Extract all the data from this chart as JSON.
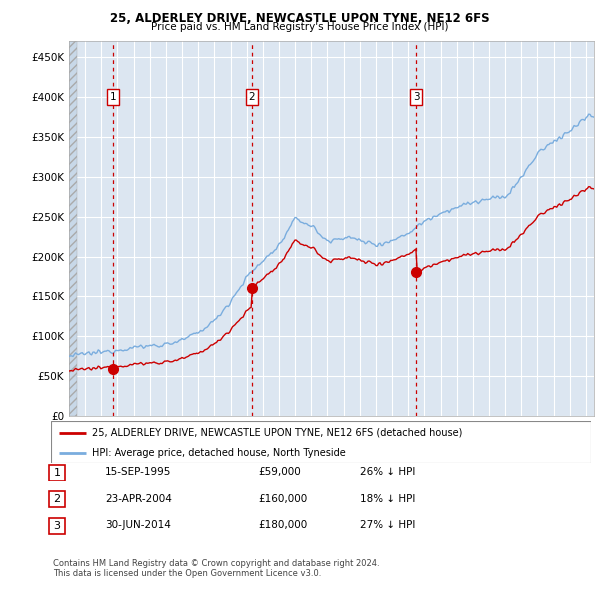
{
  "title1": "25, ALDERLEY DRIVE, NEWCASTLE UPON TYNE, NE12 6FS",
  "title2": "Price paid vs. HM Land Registry's House Price Index (HPI)",
  "ylim": [
    0,
    470000
  ],
  "yticks": [
    0,
    50000,
    100000,
    150000,
    200000,
    250000,
    300000,
    350000,
    400000,
    450000
  ],
  "ytick_labels": [
    "£0",
    "£50K",
    "£100K",
    "£150K",
    "£200K",
    "£250K",
    "£300K",
    "£350K",
    "£400K",
    "£450K"
  ],
  "xlim_start": 1993.0,
  "xlim_end": 2025.5,
  "sale_dates": [
    1995.71,
    2004.31,
    2014.5
  ],
  "sale_prices": [
    59000,
    160000,
    180000
  ],
  "sale_labels": [
    "1",
    "2",
    "3"
  ],
  "hpi_color": "#7aadde",
  "price_color": "#cc0000",
  "dashed_color": "#cc0000",
  "chart_bg": "#dce6f1",
  "legend_label1": "25, ALDERLEY DRIVE, NEWCASTLE UPON TYNE, NE12 6FS (detached house)",
  "legend_label2": "HPI: Average price, detached house, North Tyneside",
  "table_rows": [
    [
      "1",
      "15-SEP-1995",
      "£59,000",
      "26% ↓ HPI"
    ],
    [
      "2",
      "23-APR-2004",
      "£160,000",
      "18% ↓ HPI"
    ],
    [
      "3",
      "30-JUN-2014",
      "£180,000",
      "27% ↓ HPI"
    ]
  ],
  "footnote1": "Contains HM Land Registry data © Crown copyright and database right 2024.",
  "footnote2": "This data is licensed under the Open Government Licence v3.0.",
  "hpi_keypoints_x": [
    1993,
    1994,
    1995,
    1996,
    1997,
    1998,
    1999,
    2000,
    2001,
    2002,
    2003,
    2004,
    2005,
    2006,
    2007,
    2008,
    2009,
    2010,
    2011,
    2012,
    2013,
    2014,
    2015,
    2016,
    2017,
    2018,
    2019,
    2020,
    2021,
    2022,
    2023,
    2024,
    2025
  ],
  "hpi_keypoints_y": [
    75000,
    78000,
    80000,
    83000,
    86000,
    88000,
    90000,
    95000,
    105000,
    120000,
    145000,
    175000,
    195000,
    215000,
    248000,
    238000,
    218000,
    225000,
    220000,
    215000,
    220000,
    230000,
    245000,
    255000,
    262000,
    268000,
    272000,
    275000,
    300000,
    330000,
    345000,
    358000,
    375000
  ]
}
